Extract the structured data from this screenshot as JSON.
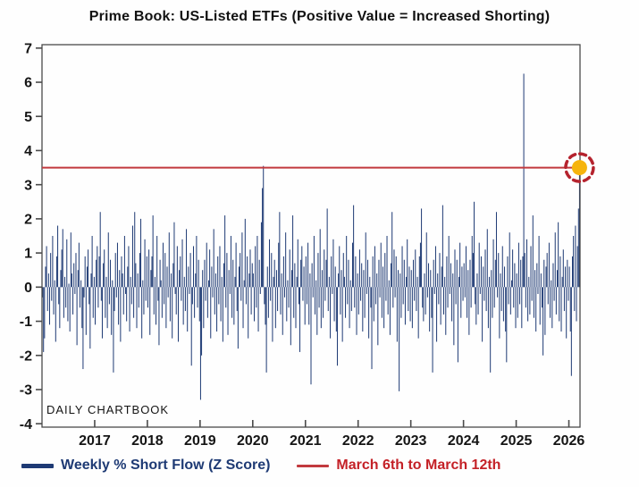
{
  "title": "Prime Book: US-Listed ETFs (Positive Value = Increased Shorting)",
  "watermark": "DAILY CHARTBOOK",
  "legend": {
    "series_label": "Weekly % Short Flow (Z Score)",
    "ref_label": "March 6th to March 12th"
  },
  "colors": {
    "bar": "#1e3a74",
    "legend_series_text": "#1e3a74",
    "ref_line": "#c23a3e",
    "legend_ref_text": "#c42127",
    "highlight_fill": "#f6b40e",
    "highlight_ring": "#b5232e",
    "axis_frame": "#4a4a4a",
    "tick_text": "#151515"
  },
  "chart_data": {
    "type": "bar",
    "title": "Prime Book: US-Listed ETFs (Positive Value = Increased Shorting)",
    "series_name": "Weekly % Short Flow (Z Score)",
    "xlabel": "",
    "ylabel": "",
    "grid": false,
    "legend_position": "bottom",
    "x_start_year": 2016,
    "x_frequency": "weekly",
    "x_ticks": [
      2017,
      2018,
      2019,
      2020,
      2021,
      2022,
      2023,
      2024,
      2025,
      2026
    ],
    "y_ticks": [
      7,
      6,
      5,
      4,
      3,
      2,
      1,
      0,
      -1,
      -2,
      -3,
      -4
    ],
    "ylim": [
      -4.1,
      7.1
    ],
    "ref_line": {
      "value": 3.5,
      "label": "March 6th to March 12th"
    },
    "highlight": {
      "point": "last",
      "value": 3.5,
      "note": "latest week circled at red line level"
    },
    "values_weekly_by_year": [
      [
        -0.3,
        -1.9,
        -1.5,
        0.6,
        1.2,
        -0.7,
        0.4,
        -1.1,
        1.0,
        -0.4,
        1.5,
        -0.8,
        0.2,
        -1.6,
        0.9,
        1.8,
        -0.5,
        -1.2,
        0.5,
        1.1,
        1.7,
        -0.9,
        0.3,
        -0.6,
        1.4,
        -1.0,
        0.1,
        -1.3,
        1.6,
        0.4,
        -0.8,
        0.7,
        -0.2,
        1.0,
        -1.7,
        0.5,
        1.3,
        -0.6,
        0.2,
        -1.2,
        -2.4,
        -0.3,
        0.9,
        -1.4,
        0.6,
        1.1,
        -0.5,
        -1.8,
        0.4,
        1.5,
        -0.9,
        0.3
      ],
      [
        -1.1,
        0.8,
        1.2,
        -0.6,
        0.9,
        2.2,
        -0.4,
        -1.5,
        0.7,
        1.1,
        -0.9,
        0.3,
        -1.2,
        1.6,
        -0.5,
        0.8,
        -1.4,
        0.2,
        -2.5,
        -0.7,
        1.0,
        -0.3,
        1.3,
        -1.1,
        0.5,
        -1.6,
        0.9,
        0.4,
        -0.8,
        1.5,
        -0.2,
        -1.0,
        0.6,
        1.2,
        -1.3,
        0.3,
        -0.5,
        1.8,
        -0.9,
        2.2,
        0.7,
        -1.2,
        0.4,
        -0.6,
        1.0,
        2.0,
        -1.5,
        0.2,
        -0.8,
        1.4,
        -0.4,
        0.9
      ],
      [
        -0.6,
        1.1,
        -1.4,
        0.5,
        0.9,
        2.1,
        -0.8,
        0.3,
        -1.1,
        1.5,
        -0.4,
        -1.7,
        0.8,
        0.2,
        -0.9,
        1.3,
        -0.5,
        1.0,
        -1.2,
        0.6,
        -0.3,
        1.6,
        -1.0,
        0.4,
        -1.5,
        0.7,
        1.9,
        -0.2,
        -0.8,
        1.2,
        -1.6,
        0.5,
        0.9,
        -0.4,
        1.4,
        -1.1,
        0.3,
        -0.7,
        1.7,
        -1.3,
        0.6,
        -0.2,
        1.0,
        -2.3,
        -0.5,
        1.2,
        -0.9,
        0.4,
        1.5,
        -0.6,
        0.8,
        -1.0
      ],
      [
        -3.3,
        -2.0,
        0.5,
        -1.2,
        0.8,
        -0.4,
        1.3,
        -0.9,
        0.2,
        1.1,
        -1.5,
        0.6,
        -0.3,
        1.7,
        -0.8,
        0.4,
        -1.3,
        0.9,
        -0.5,
        1.2,
        -1.0,
        0.3,
        -1.6,
        0.7,
        2.1,
        -0.6,
        1.0,
        -1.4,
        0.5,
        -0.2,
        1.5,
        -0.9,
        0.8,
        -1.1,
        0.3,
        1.3,
        -0.7,
        -1.8,
        0.6,
        1.0,
        -0.4,
        1.6,
        -1.2,
        0.2,
        2.0,
        -0.5,
        0.9,
        -1.5,
        0.4,
        1.1,
        -0.8,
        0.7
      ],
      [
        0.4,
        -1.0,
        1.2,
        -0.6,
        1.5,
        -1.3,
        0.8,
        -0.2,
        1.9,
        2.9,
        3.55,
        -0.5,
        -1.1,
        -2.5,
        0.6,
        -0.9,
        1.4,
        -0.4,
        1.0,
        -1.6,
        0.3,
        0.8,
        -1.2,
        0.5,
        -0.7,
        1.3,
        2.2,
        -0.8,
        0.4,
        -1.4,
        0.9,
        -0.3,
        1.6,
        -1.0,
        0.2,
        -0.6,
        1.1,
        -1.7,
        0.5,
        2.1,
        -0.9,
        0.7,
        -1.2,
        0.3,
        1.4,
        -0.5,
        -1.9,
        0.8,
        1.2,
        -0.4,
        0.6,
        -1.1
      ],
      [
        0.9,
        -0.5,
        1.3,
        -1.1,
        0.4,
        -2.85,
        0.7,
        -0.3,
        1.5,
        -0.8,
        0.2,
        -1.4,
        1.0,
        -0.6,
        1.7,
        -1.2,
        0.5,
        -0.9,
        1.1,
        -0.4,
        0.8,
        2.3,
        -0.7,
        0.3,
        -1.5,
        0.9,
        -0.2,
        1.4,
        -1.0,
        0.6,
        -1.3,
        -2.3,
        0.4,
        1.2,
        -0.8,
        0.5,
        -1.6,
        1.0,
        0.3,
        -0.9,
        1.5,
        -0.5,
        0.8,
        -1.2,
        0.2,
        -0.7,
        1.3,
        2.4,
        -0.6,
        0.9,
        -1.4,
        0.4
      ],
      [
        -0.8,
        1.1,
        -0.4,
        0.7,
        -1.3,
        0.5,
        -0.9,
        1.6,
        -0.2,
        0.8,
        -1.5,
        0.3,
        -0.6,
        -2.4,
        0.9,
        -1.0,
        1.2,
        -0.5,
        0.4,
        -1.7,
        0.8,
        -0.3,
        1.3,
        -0.9,
        0.6,
        -1.2,
        1.0,
        -0.4,
        1.5,
        -0.8,
        0.2,
        -1.4,
        0.7,
        2.2,
        -0.6,
        1.1,
        -0.3,
        0.9,
        -1.6,
        0.5,
        -3.05,
        0.4,
        -0.9,
        1.2,
        -0.5,
        0.8,
        -1.1,
        0.3,
        1.4,
        -0.7,
        0.6,
        -1.0
      ],
      [
        0.5,
        -1.2,
        0.8,
        -0.4,
        1.1,
        -0.7,
        0.3,
        -1.5,
        0.9,
        1.3,
        2.3,
        -0.6,
        -1.0,
        0.4,
        -0.8,
        1.6,
        -0.3,
        0.7,
        -1.3,
        0.5,
        -0.9,
        -2.5,
        0.8,
        -0.2,
        1.2,
        -1.6,
        0.4,
        -0.5,
        1.0,
        -1.1,
        0.6,
        2.4,
        -0.8,
        0.3,
        -1.4,
        0.9,
        -0.6,
        1.5,
        -0.2,
        0.7,
        -1.0,
        0.4,
        -1.7,
        1.1,
        -0.5,
        0.8,
        -2.2,
        0.3,
        1.3,
        -0.9,
        0.6,
        -0.4
      ],
      [
        0.7,
        -0.3,
        1.2,
        -0.9,
        0.5,
        -1.4,
        0.8,
        -0.6,
        1.5,
        1.0,
        2.5,
        -0.5,
        -1.1,
        0.4,
        -0.8,
        1.3,
        -0.2,
        0.9,
        -1.6,
        0.6,
        -0.4,
        1.1,
        -0.7,
        1.7,
        -1.2,
        0.3,
        -2.5,
        0.5,
        -0.9,
        1.4,
        -0.6,
        0.8,
        2.2,
        -0.3,
        1.0,
        -1.5,
        0.4,
        -0.7,
        1.2,
        -1.0,
        0.6,
        -1.3,
        -2.2,
        0.9,
        -0.5,
        1.6,
        -0.8,
        0.2,
        1.1,
        -0.6,
        0.7,
        -1.2
      ],
      [
        0.4,
        -0.9,
        1.3,
        -0.5,
        0.8,
        -1.2,
        0.9,
        6.25,
        1.0,
        -0.6,
        1.4,
        -1.0,
        0.3,
        -0.8,
        1.2,
        -0.4,
        2.1,
        -0.9,
        0.5,
        -1.3,
        0.7,
        -0.2,
        1.5,
        -1.1,
        0.4,
        -0.6,
        -2.0,
        0.8,
        -1.4,
        0.6,
        1.0,
        -0.5,
        1.3,
        -0.9,
        0.2,
        -1.2,
        0.7,
        -0.4,
        1.6,
        -0.8,
        0.5,
        1.9,
        -1.0,
        0.9,
        -1.3,
        0.3,
        1.1,
        -0.7,
        0.6,
        -1.5,
        0.8,
        -0.4
      ],
      [
        0.6,
        -1.3,
        -2.6,
        0.9,
        1.5,
        -0.7,
        1.8,
        -1.0,
        1.2,
        2.3,
        3.5
      ]
    ]
  }
}
